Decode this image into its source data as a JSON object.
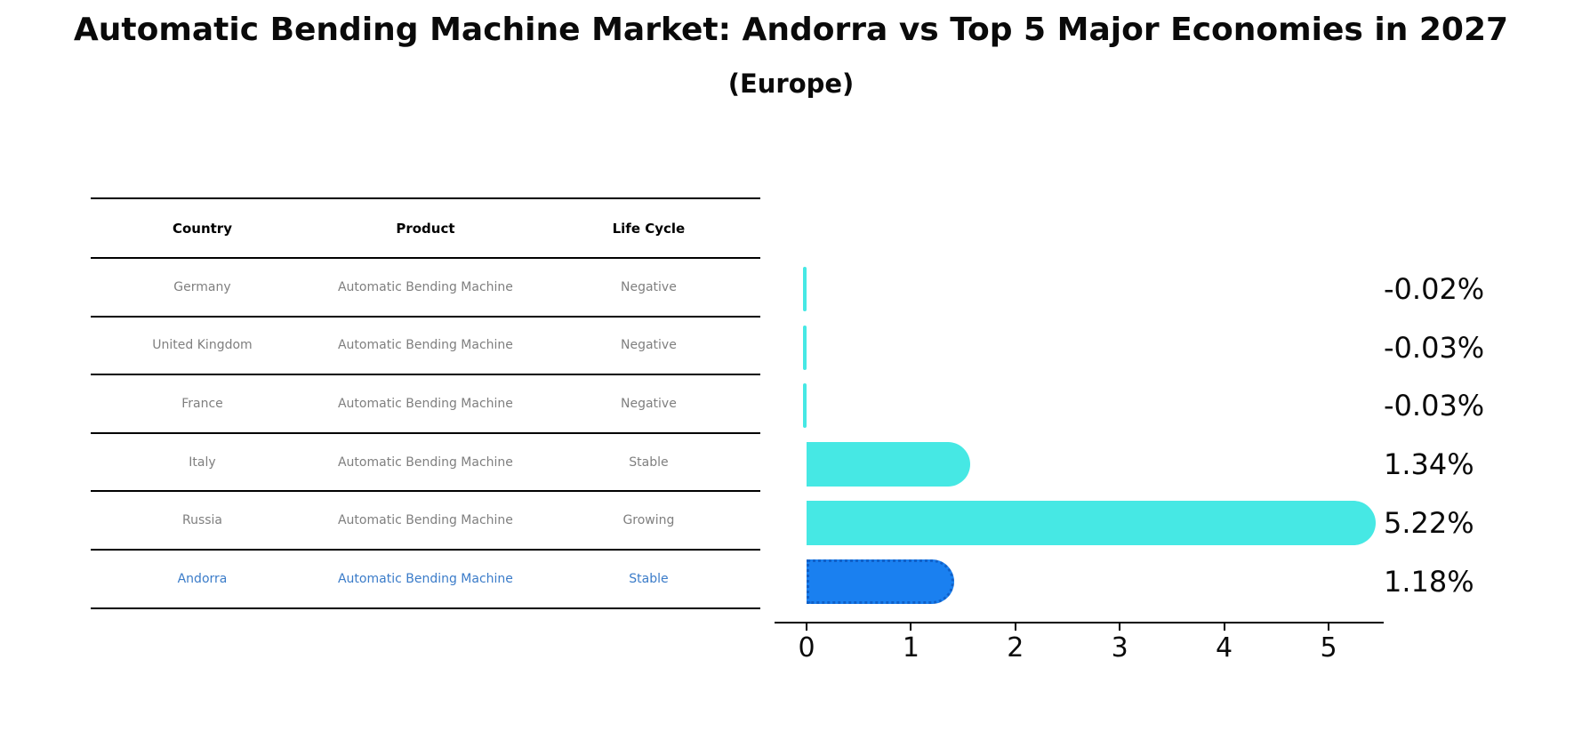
{
  "title": "Automatic Bending Machine Market: Andorra vs Top 5 Major Economies in 2027",
  "subtitle": "(Europe)",
  "table": {
    "headers": {
      "country": "Country",
      "product": "Product",
      "life_cycle": "Life Cycle"
    },
    "rows": [
      {
        "country": "Germany",
        "product": "Automatic Bending Machine",
        "life_cycle": "Negative",
        "highlight": false
      },
      {
        "country": "United Kingdom",
        "product": "Automatic Bending Machine",
        "life_cycle": "Negative",
        "highlight": false
      },
      {
        "country": "France",
        "product": "Automatic Bending Machine",
        "life_cycle": "Negative",
        "highlight": false
      },
      {
        "country": "Italy",
        "product": "Automatic Bending Machine",
        "life_cycle": "Stable",
        "highlight": false
      },
      {
        "country": "Russia",
        "product": "Automatic Bending Machine",
        "life_cycle": "Growing",
        "highlight": false
      },
      {
        "country": "Andorra",
        "product": "Automatic Bending Machine",
        "life_cycle": "Stable",
        "highlight": true
      }
    ]
  },
  "chart_data": {
    "type": "bar",
    "orientation": "horizontal",
    "categories": [
      "Germany",
      "United Kingdom",
      "France",
      "Italy",
      "Russia",
      "Andorra"
    ],
    "values": [
      -0.02,
      -0.03,
      -0.03,
      1.34,
      5.22,
      1.18
    ],
    "value_labels": [
      "-0.02%",
      "-0.03%",
      "-0.03%",
      "1.34%",
      "5.22%",
      "1.18%"
    ],
    "x_ticks": [
      "0",
      "1",
      "2",
      "3",
      "4",
      "5"
    ],
    "xlim": [
      -0.29,
      5.48
    ],
    "grid": false,
    "legend": null,
    "bar_color": "#46E8E4",
    "highlight_index": 5,
    "highlight_color": "#1A80F0",
    "highlight_border_color": "#1060C8",
    "unit_suffix": "%"
  },
  "colors": {
    "muted_text": "#7f7f7f",
    "highlight_text": "#3B7CC9",
    "axis": "#000000"
  }
}
